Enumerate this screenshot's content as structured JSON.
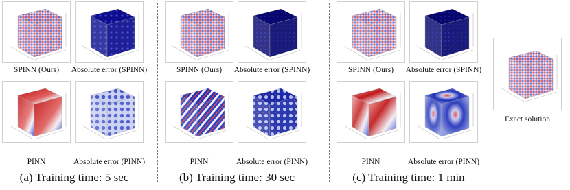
{
  "groups": [
    {
      "caption": "(a) Training time: 5 sec",
      "labels": [
        "SPINN (Ours)",
        "Absolute error (SPINN)",
        "PINN",
        "Absolute error (PINN)"
      ]
    },
    {
      "caption": "(b) Training time: 30 sec",
      "labels": [
        "SPINN (Ours)",
        "Absolute error (SPINN)",
        "PINN",
        "Absolute error (PINN)"
      ]
    },
    {
      "caption": "(c) Training time: 1 min",
      "labels": [
        "SPINN (Ours)",
        "Absolute error (SPINN)",
        "PINN",
        "Absolute error (PINN)"
      ]
    }
  ],
  "exact": {
    "label": "Exact solution"
  }
}
